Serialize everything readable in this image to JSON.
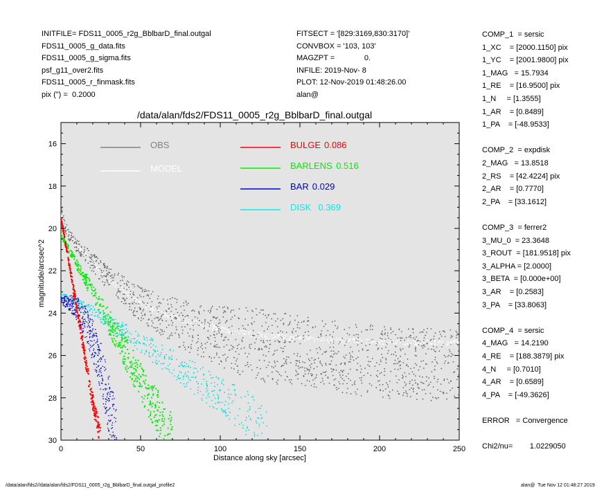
{
  "header_left": [
    "INITFILE= FDS11_0005_r2g_BblbarD_final.outgal",
    "FDS11_0005_g_data.fits",
    "FDS11_0005_g_sigma.fits",
    "psf_g11_over2.fits",
    "FDS11_0005_r_finmask.fits",
    "pix (\") =  0.2000"
  ],
  "header_mid": [
    "FITSECT = '[829:3169,830:3170]'",
    "CONVBOX = '103, 103'",
    "MAGZPT =              0.",
    "INFILE: 2019-Nov- 8",
    "PLOT: 12-Nov-2019 01:48:26.00",
    "alan@"
  ],
  "params": [
    "COMP_1  = sersic",
    "1_XC    = [2000.1150] pix",
    "1_YC    = [2001.9800] pix",
    "1_MAG   = 15.7934",
    "1_RE    = [16.9500] pix",
    "1_N     = [1.3555]",
    "1_AR    = [0.8489]",
    "1_PA    = [-48.9533]",
    "",
    "COMP_2  = expdisk",
    "2_MAG   = 13.8518",
    "2_RS    = [42.4224] pix",
    "2_AR    = [0.7770]",
    "2_PA    = [33.1612]",
    "",
    "COMP_3  = ferrer2",
    "3_MU_0  = 23.3648",
    "3_ROUT  = [181.9518] pix",
    "3_ALPHA = [2.0000]",
    "3_BETA  = [0.000e+00]",
    "3_AR    = [0.2583]",
    "3_PA    = [33.8063]",
    "",
    "COMP_4  = sersic",
    "4_MAG   = 14.2190",
    "4_RE    = [188.3879] pix",
    "4_N     = [0.7010]",
    "4_AR    = [0.6589]",
    "4_PA    = [-49.3626]",
    "",
    "ERROR   = Convergence",
    "",
    "Chi2/nu=        1.0229050"
  ],
  "footer_left": "/data/alan/fds2//data/alan/fds2/FDS11_0005_r2g_BblbarD_final.outgal_profile2",
  "footer_right": "alan@  Tue Nov 12 01:48:27 2019",
  "chart_data": {
    "type": "scatter",
    "title": "/data/alan/fds2/FDS11_0005_r2g_BblbarD_final.outgal",
    "xlabel": "Distance along sky [arcsec]",
    "ylabel": "magnitude/arcsec^2",
    "xlim": [
      0,
      250
    ],
    "ylim": [
      30,
      15
    ],
    "xticks": [
      "0",
      "50",
      "100",
      "150",
      "200",
      "250"
    ],
    "yticks": [
      "16",
      "18",
      "20",
      "22",
      "24",
      "26",
      "28",
      "30"
    ],
    "grid": false,
    "background": "#e4e4e4",
    "legend": [
      {
        "label": "OBS",
        "value": "",
        "color": "#808080"
      },
      {
        "label": "MODEL",
        "value": "",
        "color": "#ffffff"
      },
      {
        "label": "BULGE",
        "value": "0.086",
        "color": "#ff0000"
      },
      {
        "label": "BARLENS",
        "value": "0.516",
        "color": "#00ee00"
      },
      {
        "label": "BAR",
        "value": "0.029",
        "color": "#0000cc"
      },
      {
        "label": "DISK",
        "value": "0.369",
        "color": "#00eeee"
      }
    ],
    "series": [
      {
        "name": "OBS",
        "color": "#666666",
        "x": [
          0,
          2,
          5,
          10,
          15,
          20,
          30,
          40,
          50,
          60,
          75,
          90,
          110,
          130,
          150,
          175,
          200,
          225,
          250
        ],
        "y": [
          18.9,
          19.8,
          20.3,
          20.8,
          21.2,
          21.6,
          22.4,
          23.0,
          23.6,
          24.0,
          24.5,
          24.9,
          25.3,
          25.6,
          25.8,
          26.1,
          26.3,
          26.4,
          26.5
        ]
      },
      {
        "name": "MODEL",
        "color": "#ffffff",
        "x": [
          0,
          5,
          10,
          20,
          30,
          40,
          50,
          60,
          75,
          90,
          110,
          130,
          150,
          175,
          200,
          225,
          250
        ],
        "y": [
          19.5,
          20.3,
          20.8,
          21.6,
          22.4,
          23.0,
          23.5,
          23.9,
          24.3,
          24.6,
          24.9,
          25.1,
          25.2,
          25.3,
          25.35,
          25.4,
          25.4
        ]
      },
      {
        "name": "BULGE",
        "color": "#ff0000",
        "x": [
          0,
          5,
          10,
          15,
          20,
          25
        ],
        "y": [
          19.5,
          21.6,
          23.8,
          26.0,
          28.2,
          30.0
        ]
      },
      {
        "name": "BARLENS",
        "color": "#00ee00",
        "x": [
          0,
          10,
          20,
          30,
          40,
          50,
          60,
          70
        ],
        "y": [
          20.3,
          21.7,
          23.0,
          24.4,
          25.8,
          27.2,
          28.6,
          30.0
        ]
      },
      {
        "name": "BAR",
        "color": "#0000cc",
        "x": [
          0,
          5,
          10,
          15,
          20,
          25,
          30,
          35
        ],
        "y": [
          23.4,
          23.5,
          23.8,
          24.4,
          25.3,
          26.6,
          28.2,
          30.0
        ]
      },
      {
        "name": "DISK",
        "color": "#00dddd",
        "x": [
          0,
          20,
          40,
          60,
          80,
          100,
          120,
          130
        ],
        "y": [
          23.1,
          23.9,
          24.9,
          25.9,
          26.9,
          27.9,
          28.9,
          29.7
        ]
      }
    ]
  }
}
